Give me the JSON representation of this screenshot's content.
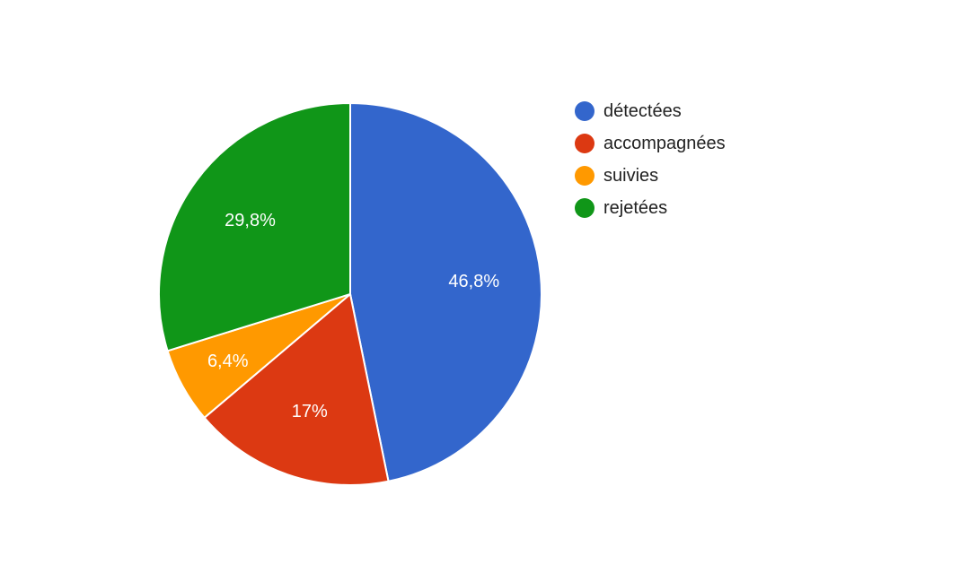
{
  "chart_data": {
    "type": "pie",
    "categories": [
      "détectées",
      "accompagnées",
      "suivies",
      "rejetées"
    ],
    "values": [
      46.8,
      17,
      6.4,
      29.8
    ],
    "labels": [
      "46,8%",
      "17%",
      "6,4%",
      "29,8%"
    ],
    "colors": [
      "#3366cc",
      "#dc3912",
      "#ff9900",
      "#109618"
    ],
    "legend_position": "right"
  }
}
